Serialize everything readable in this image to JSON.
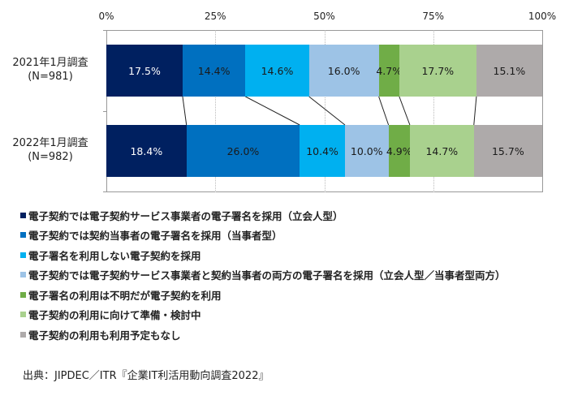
{
  "chart_data": {
    "type": "bar",
    "orientation": "horizontal",
    "stacked": "percent",
    "title": "",
    "xlabel": "",
    "ylabel": "",
    "xlim": [
      0,
      100
    ],
    "x_ticks": [
      "0%",
      "25%",
      "50%",
      "75%",
      "100%"
    ],
    "categories": [
      "2021年1月調査\n(N=981)",
      "2022年1月調査\n(N=982)"
    ],
    "category_lines": [
      [
        "2021年1月調査",
        "(N=981)"
      ],
      [
        "2022年1月調査",
        "(N=982)"
      ]
    ],
    "series": [
      {
        "name": "電子契約では電子契約サービス事業者の電子署名を採用（立会人型）",
        "color": "#002060",
        "label_color": "#ffffff",
        "values": [
          17.5,
          18.4
        ],
        "labels": [
          "17.5%",
          "18.4%"
        ]
      },
      {
        "name": "電子契約では契約当事者の電子署名を採用（当事者型）",
        "color": "#0070c0",
        "label_color": "#1a1a1a",
        "values": [
          14.4,
          26.0
        ],
        "labels": [
          "14.4%",
          "26.0%"
        ]
      },
      {
        "name": "電子署名を利用しない電子契約を採用",
        "color": "#00b0f0",
        "label_color": "#1a1a1a",
        "values": [
          14.6,
          10.4
        ],
        "labels": [
          "14.6%",
          "10.4%"
        ]
      },
      {
        "name": "電子契約では電子契約サービス事業者と契約当事者の両方の電子署名を採用（立会人型／当事者型両方）",
        "color": "#9dc3e6",
        "label_color": "#1a1a1a",
        "values": [
          16.0,
          10.0
        ],
        "labels": [
          "16.0%",
          "10.0%"
        ]
      },
      {
        "name": "電子署名の利用は不明だが電子契約を利用",
        "color": "#70ad47",
        "label_color": "#1a1a1a",
        "values": [
          4.7,
          4.9
        ],
        "labels": [
          "4.7%",
          "4.9%"
        ]
      },
      {
        "name": "電子契約の利用に向けて準備・検討中",
        "color": "#a9d18e",
        "label_color": "#1a1a1a",
        "values": [
          17.7,
          14.7
        ],
        "labels": [
          "17.7%",
          "14.7%"
        ]
      },
      {
        "name": "電子契約の利用も利用予定もなし",
        "color": "#aeaaaa",
        "label_color": "#1a1a1a",
        "values": [
          15.1,
          15.7
        ],
        "labels": [
          "15.1%",
          "15.7%"
        ]
      }
    ],
    "legend_position": "bottom",
    "grid": true,
    "series_lines": true
  },
  "source": "出典：JIPDEC／ITR『企業IT利活用動向調査2022』"
}
